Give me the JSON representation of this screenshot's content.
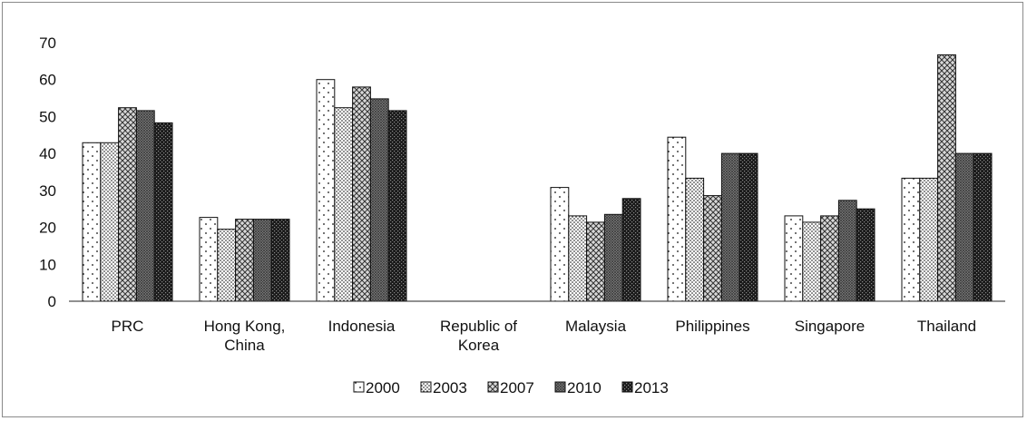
{
  "colors": {
    "bar_stroke": "#111111",
    "axis": "#222222",
    "background": "#ffffff"
  },
  "chart_data": {
    "type": "bar",
    "title": "",
    "xlabel": "",
    "ylabel": "",
    "ylim": [
      0,
      70
    ],
    "yticks": [
      0,
      10,
      20,
      30,
      40,
      50,
      60,
      70
    ],
    "grid": false,
    "legend_position": "bottom",
    "categories": [
      "PRC",
      "Hong Kong, China",
      "Indonesia",
      "Republic of Korea",
      "Malaysia",
      "Philippines",
      "Singapore",
      "Thailand"
    ],
    "category_label_lines": [
      [
        "PRC"
      ],
      [
        "Hong Kong,",
        "China"
      ],
      [
        "Indonesia"
      ],
      [
        "Republic of",
        "Korea"
      ],
      [
        "Malaysia"
      ],
      [
        "Philippines"
      ],
      [
        "Singapore"
      ],
      [
        "Thailand"
      ]
    ],
    "series": [
      {
        "name": "2000",
        "pattern": "sparse-dots",
        "values": [
          42.9,
          22.7,
          60.0,
          null,
          30.8,
          44.4,
          23.1,
          33.3
        ]
      },
      {
        "name": "2003",
        "pattern": "dense-dots",
        "values": [
          42.9,
          19.5,
          52.4,
          null,
          23.1,
          33.3,
          21.4,
          33.3
        ]
      },
      {
        "name": "2007",
        "pattern": "cross-hatch",
        "values": [
          52.4,
          22.2,
          58.0,
          null,
          21.4,
          28.6,
          23.1,
          66.7
        ]
      },
      {
        "name": "2010",
        "pattern": "fine-grid",
        "values": [
          51.6,
          22.2,
          54.8,
          null,
          23.5,
          40.0,
          27.3,
          40.0
        ]
      },
      {
        "name": "2013",
        "pattern": "dark-checker",
        "values": [
          48.3,
          22.2,
          51.6,
          null,
          27.8,
          40.0,
          25.0,
          40.0
        ]
      }
    ]
  }
}
